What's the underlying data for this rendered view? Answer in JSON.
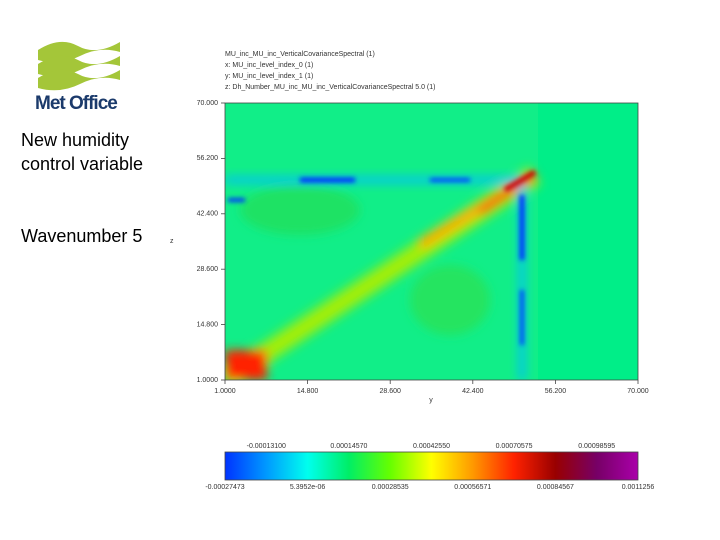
{
  "logo": {
    "text": "Met Office"
  },
  "side_text": {
    "title": "New humidity control variable",
    "subtitle": "Wavenumber 5"
  },
  "plot": {
    "header": [
      "MU_inc_MU_inc_VerticalCovarianceSpectral (1)",
      "x: MU_inc_level_index_0 (1)",
      "y: MU_inc_level_index_1 (1)",
      "z: Dh_Number_MU_inc_MU_inc_VerticalCovarianceSpectral 5.0 (1)"
    ],
    "y_label": "z",
    "x_label": "y",
    "y_ticks": [
      "70.000",
      "56.200",
      "42.400",
      "28.600",
      "14.800",
      "1.0000"
    ],
    "x_ticks": [
      "1.0000",
      "14.800",
      "28.600",
      "42.400",
      "56.200",
      "70.000"
    ]
  },
  "colorbar": {
    "upper_labels": [
      "-0.00013100",
      "0.00014570",
      "0.00042550",
      "0.00070575",
      "0.00098595"
    ],
    "lower_labels": [
      "-0.00027473",
      "5.3952e-06",
      "0.00028535",
      "0.00056571",
      "0.00084567",
      "0.0011256"
    ]
  }
}
